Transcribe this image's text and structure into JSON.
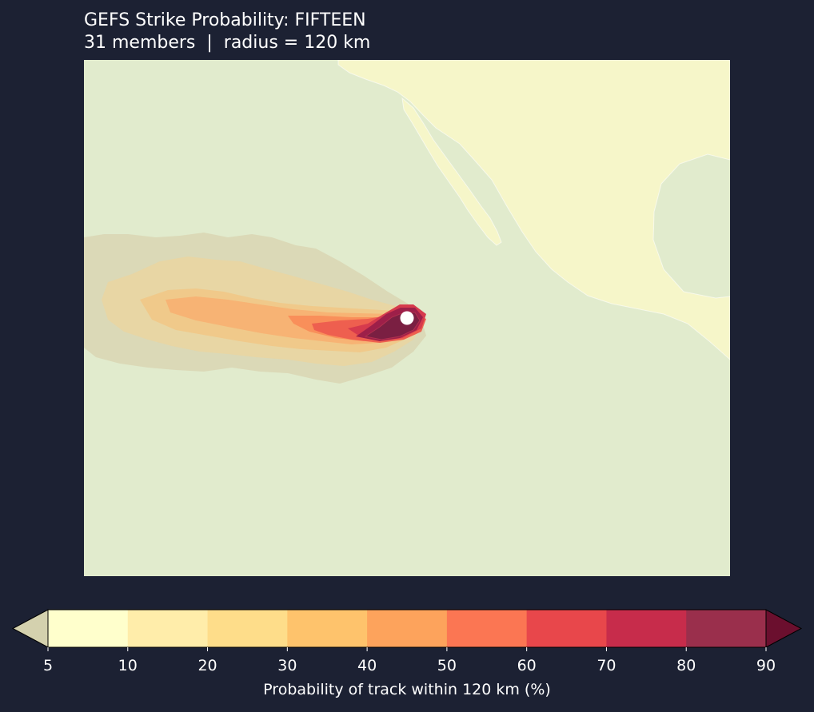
{
  "title": "GEFS Strike Probability: FIFTEEN",
  "subtitle": "31 members  |  radius = 120 km",
  "colors": {
    "background": "#1c2133",
    "ocean": "#e1ebcd",
    "land": "#f6f6c9",
    "storm_marker": "#ffffff"
  },
  "storm_marker_icon": "white-circle-current-position",
  "colorbar": {
    "label": "Probability of track within 120 km (%)",
    "ticks": [
      "5",
      "10",
      "20",
      "30",
      "40",
      "50",
      "60",
      "70",
      "80",
      "90"
    ],
    "under_color": "#d4d1ae",
    "over_color": "#6b0f2e",
    "bins": [
      {
        "from": 5,
        "to": 10,
        "color": "#ffffcc"
      },
      {
        "from": 10,
        "to": 20,
        "color": "#ffedaa"
      },
      {
        "from": 20,
        "to": 30,
        "color": "#fedd8a"
      },
      {
        "from": 30,
        "to": 40,
        "color": "#fec36c"
      },
      {
        "from": 40,
        "to": 50,
        "color": "#fda35c"
      },
      {
        "from": 50,
        "to": 60,
        "color": "#fb7653"
      },
      {
        "from": 60,
        "to": 70,
        "color": "#e8474b"
      },
      {
        "from": 70,
        "to": 80,
        "color": "#c72c4b"
      },
      {
        "from": 80,
        "to": 90,
        "color": "#9a2f4c"
      }
    ]
  }
}
